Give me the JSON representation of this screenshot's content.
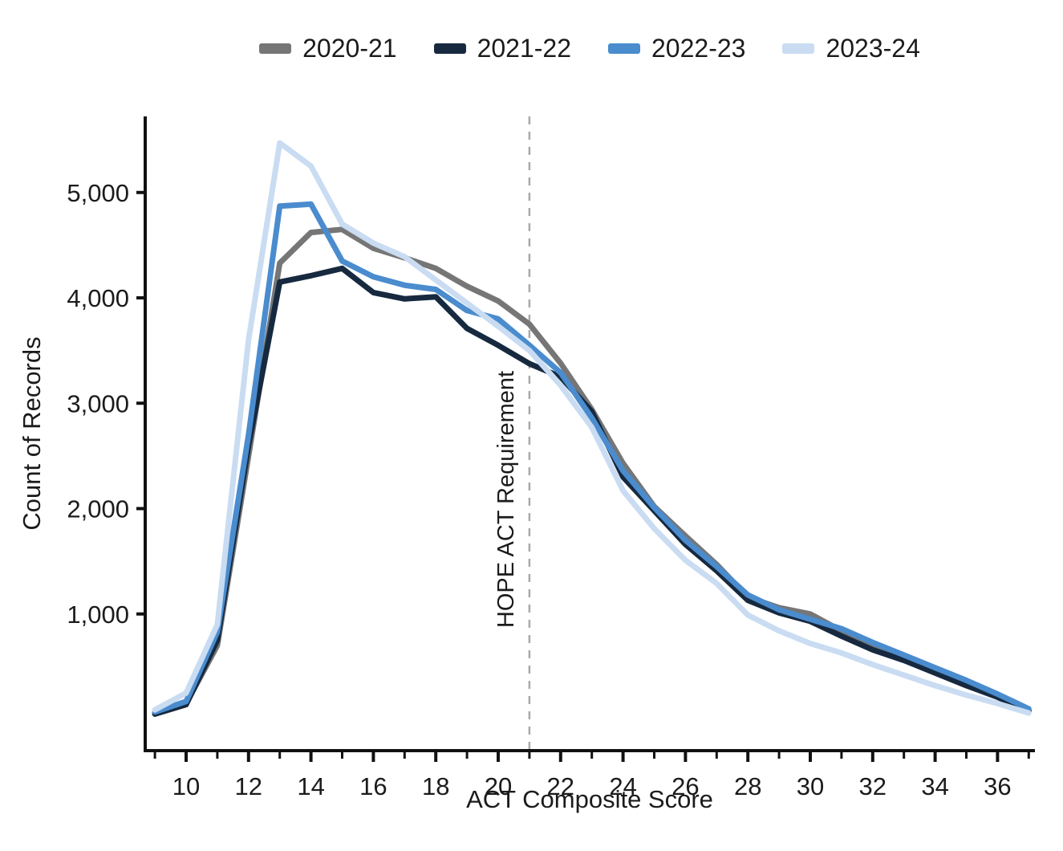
{
  "chart_data": {
    "type": "line",
    "title": "",
    "xlabel": "ACT Composite Score",
    "ylabel": "Count of Records",
    "x_range": [
      9,
      37
    ],
    "y_range": [
      0,
      5700
    ],
    "grid": false,
    "legend_position": "top",
    "x": [
      9,
      10,
      11,
      12,
      13,
      14,
      15,
      16,
      17,
      18,
      19,
      20,
      21,
      22,
      23,
      24,
      25,
      26,
      27,
      28,
      29,
      30,
      31,
      32,
      33,
      34,
      35,
      36,
      37
    ],
    "series": [
      {
        "name": "2020-21",
        "color": "#767676",
        "values": [
          60,
          150,
          700,
          2500,
          4330,
          4620,
          4650,
          4470,
          4380,
          4280,
          4110,
          3970,
          3750,
          3380,
          2940,
          2430,
          2020,
          1740,
          1470,
          1160,
          1060,
          1000,
          840,
          700,
          590,
          470,
          340,
          220,
          90
        ]
      },
      {
        "name": "2021-22",
        "color": "#16293F",
        "values": [
          50,
          140,
          750,
          2600,
          4150,
          4210,
          4280,
          4050,
          3990,
          4010,
          3710,
          3550,
          3375,
          3250,
          2920,
          2300,
          1980,
          1660,
          1410,
          1130,
          1010,
          930,
          790,
          660,
          560,
          440,
          320,
          210,
          80
        ]
      },
      {
        "name": "2022-23",
        "color": "#4A8CCE",
        "values": [
          70,
          170,
          830,
          2700,
          4870,
          4890,
          4350,
          4200,
          4120,
          4080,
          3880,
          3800,
          3550,
          3290,
          2860,
          2360,
          2010,
          1700,
          1450,
          1180,
          1040,
          950,
          860,
          730,
          610,
          490,
          370,
          240,
          100
        ]
      },
      {
        "name": "2023-24",
        "color": "#C9DCF2",
        "values": [
          90,
          250,
          900,
          3600,
          5470,
          5250,
          4700,
          4520,
          4390,
          4170,
          3950,
          3730,
          3500,
          3170,
          2770,
          2170,
          1810,
          1510,
          1290,
          990,
          840,
          720,
          630,
          520,
          420,
          320,
          230,
          150,
          60
        ]
      }
    ],
    "x_ticks": [
      {
        "value": 10,
        "label": "10"
      },
      {
        "value": 12,
        "label": "12"
      },
      {
        "value": 14,
        "label": "14"
      },
      {
        "value": 16,
        "label": "16"
      },
      {
        "value": 18,
        "label": "18"
      },
      {
        "value": 20,
        "label": "20"
      },
      {
        "value": 22,
        "label": "22"
      },
      {
        "value": 24,
        "label": "24"
      },
      {
        "value": 26,
        "label": "26"
      },
      {
        "value": 28,
        "label": "28"
      },
      {
        "value": 30,
        "label": "30"
      },
      {
        "value": 32,
        "label": "32"
      },
      {
        "value": 34,
        "label": "34"
      },
      {
        "value": 36,
        "label": "36"
      }
    ],
    "y_ticks": [
      {
        "value": 1000,
        "label": "1,000"
      },
      {
        "value": 2000,
        "label": "2,000"
      },
      {
        "value": 3000,
        "label": "3,000"
      },
      {
        "value": 4000,
        "label": "4,000"
      },
      {
        "value": 5000,
        "label": "5,000"
      }
    ],
    "annotation": {
      "label": "HOPE ACT Requirement",
      "x": 21,
      "line_color": "#A9A9A9"
    }
  }
}
